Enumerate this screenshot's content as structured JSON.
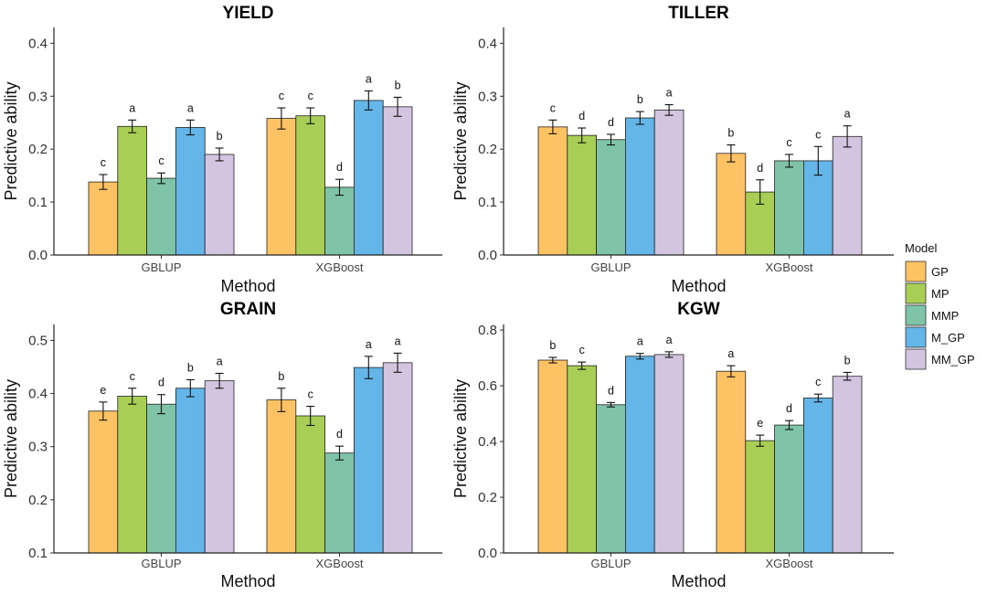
{
  "legend": {
    "title": "Model",
    "entries": [
      {
        "name": "GP",
        "color": "#FDC263"
      },
      {
        "name": "MP",
        "color": "#A9CE55"
      },
      {
        "name": "MMP",
        "color": "#7FC3A8"
      },
      {
        "name": "M_GP",
        "color": "#64B5E8"
      },
      {
        "name": "MM_GP",
        "color": "#D3C4E0"
      }
    ]
  },
  "chart_data": [
    {
      "type": "bar",
      "title": "YIELD",
      "xlabel": "Method",
      "ylabel": "Predictive ability",
      "categories": [
        "GBLUP",
        "XGBoost"
      ],
      "ylim": [
        0,
        0.43
      ],
      "yticks": [
        0.0,
        0.1,
        0.2,
        0.3,
        0.4
      ],
      "ytick_labels": [
        "0.0",
        "0.1",
        "0.2",
        "0.3",
        "0.4"
      ],
      "series": [
        {
          "name": "GP",
          "values": [
            0.138,
            0.258
          ],
          "errors": [
            0.014,
            0.02
          ],
          "letters": [
            "c",
            "c"
          ]
        },
        {
          "name": "MP",
          "values": [
            0.243,
            0.263
          ],
          "errors": [
            0.012,
            0.015
          ],
          "letters": [
            "a",
            "c"
          ]
        },
        {
          "name": "MMP",
          "values": [
            0.145,
            0.128
          ],
          "errors": [
            0.01,
            0.015
          ],
          "letters": [
            "c",
            "d"
          ]
        },
        {
          "name": "M_GP",
          "values": [
            0.241,
            0.292
          ],
          "errors": [
            0.014,
            0.018
          ],
          "letters": [
            "a",
            "a"
          ]
        },
        {
          "name": "MM_GP",
          "values": [
            0.19,
            0.28
          ],
          "errors": [
            0.012,
            0.018
          ],
          "letters": [
            "b",
            "b"
          ]
        }
      ]
    },
    {
      "type": "bar",
      "title": "TILLER",
      "xlabel": "Method",
      "ylabel": "Predictive ability",
      "categories": [
        "GBLUP",
        "XGBoost"
      ],
      "ylim": [
        0,
        0.43
      ],
      "yticks": [
        0.0,
        0.1,
        0.2,
        0.3,
        0.4
      ],
      "ytick_labels": [
        "0.0",
        "0.1",
        "0.2",
        "0.3",
        "0.4"
      ],
      "series": [
        {
          "name": "GP",
          "values": [
            0.242,
            0.192
          ],
          "errors": [
            0.013,
            0.016
          ],
          "letters": [
            "c",
            "b"
          ]
        },
        {
          "name": "MP",
          "values": [
            0.226,
            0.119
          ],
          "errors": [
            0.014,
            0.023
          ],
          "letters": [
            "d",
            "d"
          ]
        },
        {
          "name": "MMP",
          "values": [
            0.218,
            0.178
          ],
          "errors": [
            0.01,
            0.012
          ],
          "letters": [
            "d",
            "c"
          ]
        },
        {
          "name": "M_GP",
          "values": [
            0.259,
            0.178
          ],
          "errors": [
            0.012,
            0.027
          ],
          "letters": [
            "b",
            "c"
          ]
        },
        {
          "name": "MM_GP",
          "values": [
            0.274,
            0.224
          ],
          "errors": [
            0.01,
            0.02
          ],
          "letters": [
            "a",
            "a"
          ]
        }
      ]
    },
    {
      "type": "bar",
      "title": "GRAIN",
      "xlabel": "Method",
      "ylabel": "Predictive ability",
      "categories": [
        "GBLUP",
        "XGBoost"
      ],
      "ylim": [
        0.1,
        0.53
      ],
      "yticks": [
        0.1,
        0.2,
        0.3,
        0.4,
        0.5
      ],
      "ytick_labels": [
        "0.1",
        "0.2",
        "0.3",
        "0.4",
        "0.5"
      ],
      "series": [
        {
          "name": "GP",
          "values": [
            0.367,
            0.388
          ],
          "errors": [
            0.017,
            0.022
          ],
          "letters": [
            "e",
            "b"
          ]
        },
        {
          "name": "MP",
          "values": [
            0.395,
            0.358
          ],
          "errors": [
            0.015,
            0.018
          ],
          "letters": [
            "c",
            "c"
          ]
        },
        {
          "name": "MMP",
          "values": [
            0.38,
            0.288
          ],
          "errors": [
            0.018,
            0.013
          ],
          "letters": [
            "d",
            "d"
          ]
        },
        {
          "name": "M_GP",
          "values": [
            0.41,
            0.449
          ],
          "errors": [
            0.016,
            0.021
          ],
          "letters": [
            "b",
            "a"
          ]
        },
        {
          "name": "MM_GP",
          "values": [
            0.424,
            0.458
          ],
          "errors": [
            0.014,
            0.018
          ],
          "letters": [
            "a",
            "a"
          ]
        }
      ]
    },
    {
      "type": "bar",
      "title": "KGW",
      "xlabel": "Method",
      "ylabel": "Predictive ability",
      "categories": [
        "GBLUP",
        "XGBoost"
      ],
      "ylim": [
        0,
        0.82
      ],
      "yticks": [
        0.0,
        0.2,
        0.4,
        0.6,
        0.8
      ],
      "ytick_labels": [
        "0.0",
        "0.2",
        "0.4",
        "0.6",
        "0.8"
      ],
      "series": [
        {
          "name": "GP",
          "values": [
            0.692,
            0.652
          ],
          "errors": [
            0.01,
            0.02
          ],
          "letters": [
            "b",
            "a"
          ]
        },
        {
          "name": "MP",
          "values": [
            0.672,
            0.403
          ],
          "errors": [
            0.013,
            0.02
          ],
          "letters": [
            "c",
            "e"
          ]
        },
        {
          "name": "MMP",
          "values": [
            0.532,
            0.459
          ],
          "errors": [
            0.008,
            0.016
          ],
          "letters": [
            "d",
            "d"
          ]
        },
        {
          "name": "M_GP",
          "values": [
            0.706,
            0.556
          ],
          "errors": [
            0.01,
            0.014
          ],
          "letters": [
            "a",
            "c"
          ]
        },
        {
          "name": "MM_GP",
          "values": [
            0.712,
            0.634
          ],
          "errors": [
            0.01,
            0.014
          ],
          "letters": [
            "a",
            "b"
          ]
        }
      ]
    }
  ]
}
